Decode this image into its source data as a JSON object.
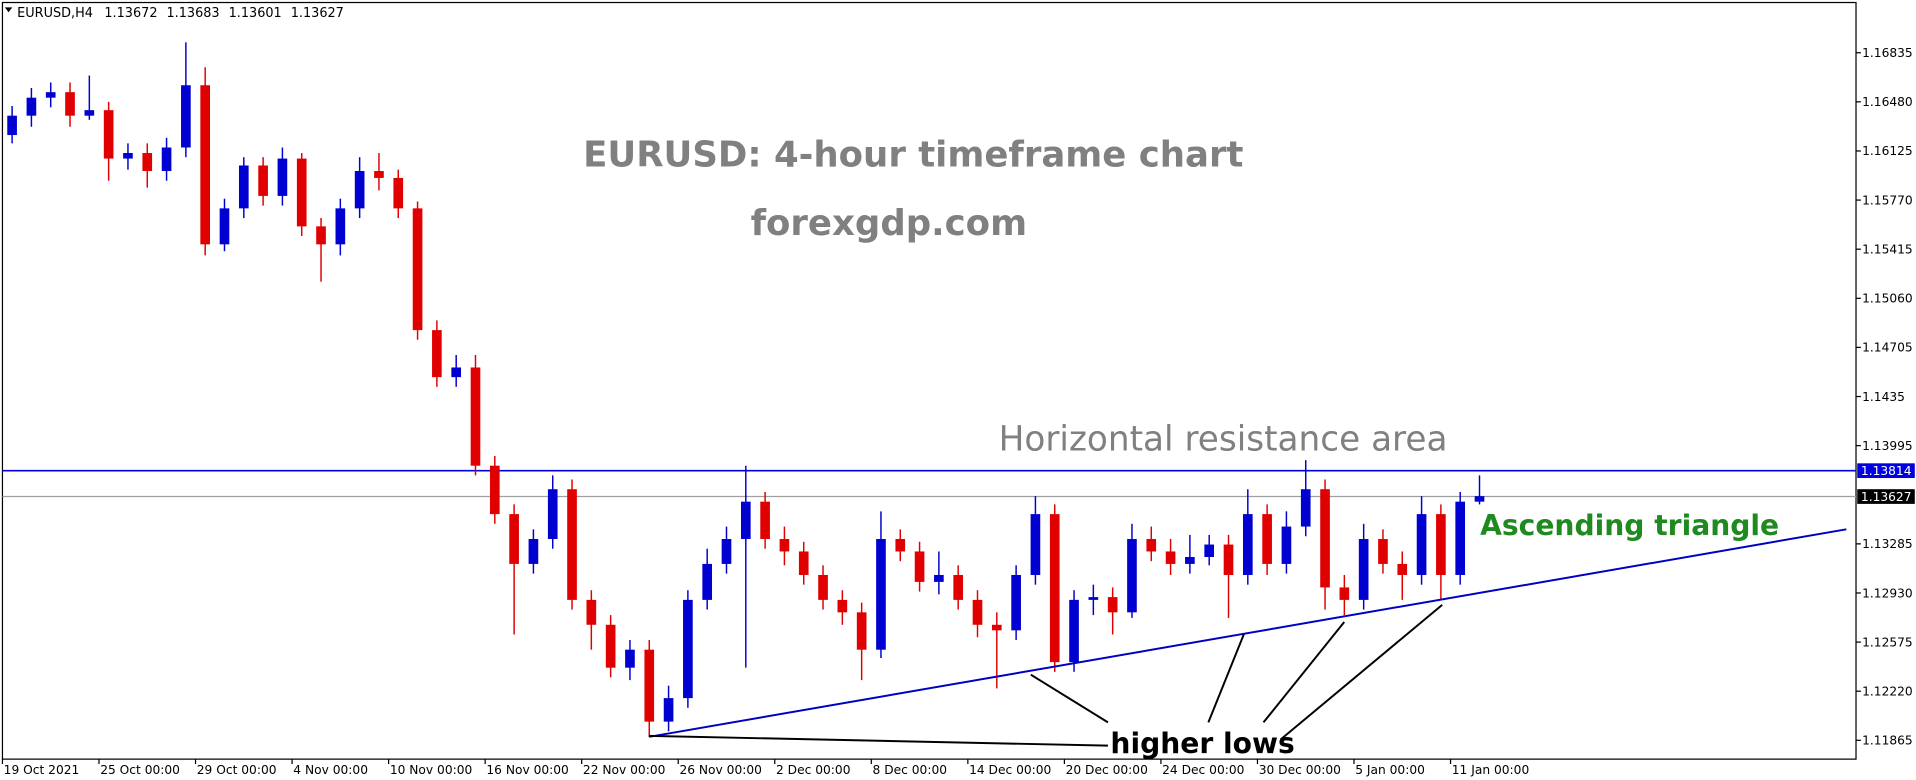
{
  "chart_data": {
    "type": "candlestick",
    "header": "EURUSD,H4",
    "header_values": [
      1.13672,
      1.13683,
      1.13601,
      1.13627
    ],
    "title": "EURUSD: 4-hour timeframe chart",
    "subtitle": "forexgdp.com",
    "annotations": [
      "Horizontal resistance area",
      "Ascending triangle",
      "higher lows"
    ],
    "categories": [
      "19 Oct 2021",
      null,
      null,
      null,
      null,
      "25 Oct 00:00",
      null,
      null,
      null,
      null,
      "29 Oct 00:00",
      null,
      null,
      null,
      null,
      "4 Nov 00:00",
      null,
      null,
      null,
      null,
      "10 Nov 00:00",
      null,
      null,
      null,
      null,
      "16 Nov 00:00",
      null,
      null,
      null,
      null,
      "22 Nov 00:00",
      null,
      null,
      null,
      null,
      "26 Nov 00:00",
      null,
      null,
      null,
      null,
      "2 Dec 00:00",
      null,
      null,
      null,
      null,
      "8 Dec 00:00",
      null,
      null,
      null,
      null,
      "14 Dec 00:00",
      null,
      null,
      null,
      null,
      "20 Dec 00:00",
      null,
      null,
      null,
      null,
      "24 Dec 00:00",
      null,
      null,
      null,
      null,
      "30 Dec 00:00",
      null,
      null,
      null,
      null,
      "5 Jan 00:00",
      null,
      null,
      null,
      null,
      "11 Jan 00:00",
      null,
      null,
      null,
      null,
      null,
      null,
      null,
      null,
      null,
      null,
      null,
      null,
      null,
      null,
      null,
      null,
      null,
      null,
      null,
      null
    ],
    "open": [
      1.1624,
      1.1638,
      1.1651,
      1.1655,
      1.1638,
      1.1642,
      1.1607,
      1.1611,
      1.1598,
      1.1615,
      1.166,
      1.1545,
      1.1571,
      1.1602,
      1.158,
      1.1607,
      1.1558,
      1.1545,
      1.1571,
      1.1598,
      1.1593,
      1.1571,
      1.1483,
      1.1449,
      1.1456,
      1.1385,
      1.135,
      1.1314,
      1.1332,
      1.1368,
      1.1288,
      1.127,
      1.1239,
      1.1252,
      1.12,
      1.1217,
      1.1288,
      1.1314,
      1.1332,
      1.1359,
      1.1332,
      1.1323,
      1.1306,
      1.1288,
      1.1279,
      1.1252,
      1.1332,
      1.1323,
      1.1301,
      1.1306,
      1.1288,
      1.127,
      1.1266,
      1.1306,
      1.135,
      1.1243,
      1.1288,
      1.129,
      1.1279,
      1.1332,
      1.1323,
      1.1314,
      1.1319,
      1.1328,
      1.1306,
      1.135,
      1.1314,
      1.1341,
      1.1368,
      1.1297,
      1.1288,
      1.1332,
      1.1314,
      1.1306,
      1.135,
      1.1306,
      1.1359,
      null,
      null,
      null,
      null,
      null,
      null,
      null,
      null,
      null,
      null,
      null,
      null,
      null,
      null,
      null,
      null,
      null,
      null,
      null
    ],
    "high": [
      1.1645,
      1.1658,
      1.1662,
      1.1662,
      1.1667,
      1.1648,
      1.1618,
      1.1618,
      1.1622,
      1.1691,
      1.1673,
      1.1578,
      1.1608,
      1.1608,
      1.1615,
      1.1611,
      1.1564,
      1.1578,
      1.1608,
      1.1611,
      1.1599,
      1.1576,
      1.149,
      1.1465,
      1.1465,
      1.1392,
      1.1357,
      1.1339,
      1.1378,
      1.1375,
      1.1295,
      1.1277,
      1.1259,
      1.1259,
      1.1226,
      1.1295,
      1.1325,
      1.1341,
      1.1385,
      1.1366,
      1.1341,
      1.133,
      1.1313,
      1.1295,
      1.1286,
      1.1352,
      1.1339,
      1.133,
      1.1323,
      1.1313,
      1.1295,
      1.1279,
      1.1313,
      1.1363,
      1.1357,
      1.1295,
      1.1299,
      1.1297,
      1.1343,
      1.1341,
      1.1332,
      1.1335,
      1.1335,
      1.1335,
      1.1368,
      1.1357,
      1.1352,
      1.1389,
      1.1375,
      1.1306,
      1.1343,
      1.1339,
      1.1323,
      1.1363,
      1.1357,
      1.1366,
      1.1378,
      null,
      null,
      null,
      null,
      null,
      null,
      null,
      null,
      null,
      null,
      null,
      null,
      null,
      null,
      null,
      null,
      null,
      null,
      null
    ],
    "low": [
      1.1618,
      1.163,
      1.1644,
      1.163,
      1.1635,
      1.1591,
      1.1599,
      1.1586,
      1.1591,
      1.1608,
      1.1537,
      1.154,
      1.1564,
      1.1573,
      1.1573,
      1.1551,
      1.1518,
      1.1537,
      1.1564,
      1.1584,
      1.1564,
      1.1476,
      1.1442,
      1.1442,
      1.1378,
      1.1343,
      1.1263,
      1.1307,
      1.1325,
      1.1281,
      1.1252,
      1.1232,
      1.123,
      1.1189,
      1.1193,
      1.121,
      1.1281,
      1.1307,
      1.1239,
      1.1325,
      1.1313,
      1.1299,
      1.1281,
      1.127,
      1.123,
      1.1246,
      1.1316,
      1.1294,
      1.1292,
      1.1281,
      1.1261,
      1.1224,
      1.1259,
      1.1299,
      1.1236,
      1.1236,
      1.1277,
      1.1263,
      1.1275,
      1.1316,
      1.1306,
      1.1307,
      1.1313,
      1.1275,
      1.1299,
      1.1306,
      1.1307,
      1.1334,
      1.1281,
      1.1277,
      1.1281,
      1.1307,
      1.1288,
      1.1299,
      1.1288,
      1.1299,
      1.1357,
      null,
      null,
      null,
      null,
      null,
      null,
      null,
      null,
      null,
      null,
      null,
      null,
      null,
      null,
      null,
      null,
      null,
      null,
      null
    ],
    "close": [
      1.1638,
      1.1651,
      1.1655,
      1.1638,
      1.1642,
      1.1607,
      1.1611,
      1.1598,
      1.1615,
      1.166,
      1.1545,
      1.1571,
      1.1602,
      1.158,
      1.1607,
      1.1558,
      1.1545,
      1.1571,
      1.1598,
      1.1593,
      1.1571,
      1.1483,
      1.1449,
      1.1456,
      1.1385,
      1.135,
      1.1314,
      1.1332,
      1.1368,
      1.1288,
      1.127,
      1.1239,
      1.1252,
      1.12,
      1.1217,
      1.1288,
      1.1314,
      1.1332,
      1.1359,
      1.1332,
      1.1323,
      1.1306,
      1.1288,
      1.1279,
      1.1252,
      1.1332,
      1.1323,
      1.1301,
      1.1306,
      1.1288,
      1.127,
      1.1266,
      1.1306,
      1.135,
      1.1243,
      1.1288,
      1.129,
      1.1279,
      1.1332,
      1.1323,
      1.1314,
      1.1319,
      1.1328,
      1.1306,
      1.135,
      1.1314,
      1.1341,
      1.1368,
      1.1297,
      1.1288,
      1.1332,
      1.1314,
      1.1306,
      1.135,
      1.1306,
      1.1359,
      1.1363,
      null,
      null,
      null,
      null,
      null,
      null,
      null,
      null,
      null,
      null,
      null,
      null,
      null,
      null,
      null,
      null,
      null,
      null,
      null
    ],
    "up_color": "#0000d0",
    "down_color": "#e00000",
    "ylim": [
      1.11729,
      1.17198
    ],
    "yticks": [
      1.11865,
      {
        "value": 1.1222,
        "label": "1.12220"
      },
      1.12575,
      {
        "value": 1.1293,
        "label": "1.12930"
      },
      1.13285,
      1.13995,
      1.1435,
      1.14705,
      {
        "value": 1.1506,
        "label": "1.15060"
      },
      1.15415,
      {
        "value": 1.1577,
        "label": "1.15770"
      },
      1.16125,
      {
        "value": 1.1648,
        "label": "1.16480"
      },
      1.16835
    ],
    "resistance_level": 1.13814,
    "resistance_color": "#0000e0",
    "current_price": 1.13627,
    "trendline": {
      "start_index": 33,
      "start_price": 1.1189,
      "end_index": 95,
      "end_price": 1.1339,
      "color": "#0000c0"
    }
  }
}
